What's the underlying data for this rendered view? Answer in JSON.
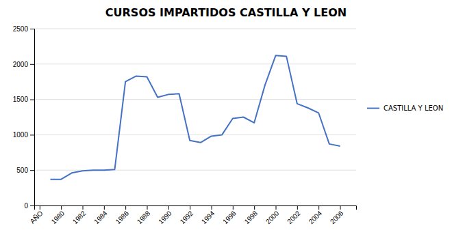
{
  "chart_data": {
    "type": "line",
    "title": "CURSOS IMPARTIDOS CASTILLA Y LEON",
    "x": [
      1979,
      1980,
      1981,
      1982,
      1983,
      1984,
      1985,
      1986,
      1987,
      1988,
      1989,
      1990,
      1991,
      1992,
      1993,
      1994,
      1995,
      1996,
      1997,
      1998,
      1999,
      2000,
      2001,
      2002,
      2003,
      2004,
      2005,
      2006
    ],
    "series": [
      {
        "name": "CASTILLA Y LEON",
        "color": "#4472C4",
        "values": [
          370,
          370,
          460,
          490,
          500,
          500,
          510,
          1750,
          1830,
          1820,
          1530,
          1570,
          1580,
          920,
          890,
          980,
          1000,
          1230,
          1250,
          1170,
          1700,
          2120,
          2110,
          1440,
          1380,
          1310,
          870,
          840
        ]
      }
    ],
    "xlim": [
      1977.5,
      2007.5
    ],
    "xticks": [
      {
        "value": 1978,
        "label": "AÑO"
      },
      1980,
      1982,
      1984,
      1986,
      1988,
      1990,
      1992,
      1994,
      1996,
      1998,
      2000,
      2002,
      2004,
      2006
    ],
    "ylim": [
      0,
      2500
    ],
    "yticks": [
      0,
      500,
      1000,
      1500,
      2000,
      2500
    ],
    "grid": true,
    "legend": "right"
  }
}
